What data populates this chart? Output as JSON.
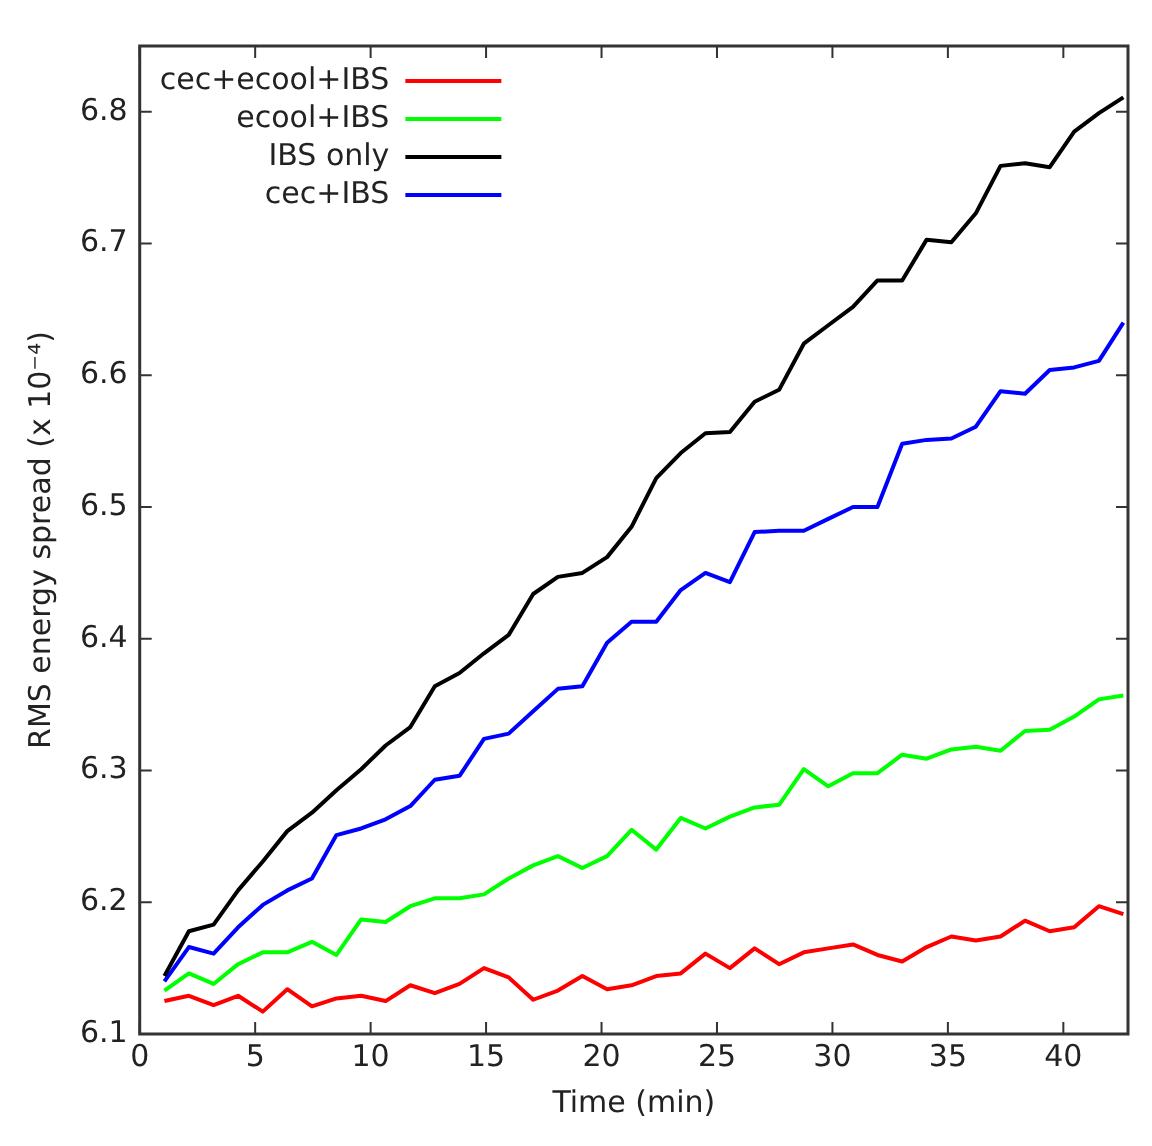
{
  "chart_data": {
    "type": "line",
    "xlabel": "Time (min)",
    "ylabel": "RMS energy spread (x 10⁻⁴)",
    "x": [
      1.07,
      2.13,
      3.2,
      4.26,
      5.33,
      6.39,
      7.46,
      8.52,
      9.59,
      10.65,
      11.72,
      12.78,
      13.85,
      14.91,
      15.98,
      17.04,
      18.11,
      19.17,
      20.24,
      21.3,
      22.37,
      23.43,
      24.5,
      25.56,
      26.63,
      27.69,
      28.76,
      29.82,
      30.89,
      31.95,
      33.02,
      34.08,
      35.15,
      36.21,
      37.28,
      38.34,
      39.41,
      40.47,
      41.54,
      42.6
    ],
    "series": [
      {
        "name": "cec+ecool+IBS",
        "color": "#ff0000",
        "values": [
          6.125,
          6.129,
          6.122,
          6.129,
          6.117,
          6.134,
          6.121,
          6.127,
          6.129,
          6.125,
          6.137,
          6.131,
          6.138,
          6.15,
          6.143,
          6.126,
          6.133,
          6.144,
          6.134,
          6.137,
          6.144,
          6.146,
          6.161,
          6.15,
          6.165,
          6.153,
          6.162,
          6.165,
          6.168,
          6.16,
          6.155,
          6.166,
          6.174,
          6.171,
          6.174,
          6.186,
          6.178,
          6.181,
          6.197,
          6.191
        ]
      },
      {
        "name": "ecool+IBS",
        "color": "#00ff00",
        "values": [
          6.133,
          6.146,
          6.138,
          6.153,
          6.162,
          6.162,
          6.17,
          6.16,
          6.187,
          6.185,
          6.197,
          6.203,
          6.203,
          6.206,
          6.218,
          6.228,
          6.235,
          6.226,
          6.235,
          6.255,
          6.24,
          6.264,
          6.256,
          6.265,
          6.272,
          6.274,
          6.301,
          6.288,
          6.298,
          6.298,
          6.312,
          6.309,
          6.316,
          6.318,
          6.315,
          6.33,
          6.331,
          6.341,
          6.354,
          6.357
        ]
      },
      {
        "name": "IBS only",
        "color": "#000000",
        "values": [
          6.144,
          6.178,
          6.183,
          6.209,
          6.231,
          6.254,
          6.268,
          6.285,
          6.301,
          6.319,
          6.333,
          6.364,
          6.374,
          6.389,
          6.403,
          6.434,
          6.447,
          6.45,
          6.462,
          6.485,
          6.522,
          6.541,
          6.556,
          6.557,
          6.58,
          6.589,
          6.624,
          6.638,
          6.652,
          6.672,
          6.672,
          6.703,
          6.701,
          6.723,
          6.759,
          6.761,
          6.758,
          6.785,
          6.799,
          6.811
        ]
      },
      {
        "name": "cec+IBS",
        "color": "#0000ff",
        "values": [
          6.14,
          6.166,
          6.161,
          6.181,
          6.198,
          6.209,
          6.218,
          6.251,
          6.256,
          6.263,
          6.273,
          6.293,
          6.296,
          6.324,
          6.328,
          6.345,
          6.362,
          6.364,
          6.397,
          6.413,
          6.413,
          6.437,
          6.45,
          6.443,
          6.481,
          6.482,
          6.482,
          6.491,
          6.5,
          6.5,
          6.548,
          6.551,
          6.552,
          6.561,
          6.588,
          6.586,
          6.604,
          6.606,
          6.611,
          6.64
        ]
      }
    ],
    "xlim": [
      0,
      42.8
    ],
    "xticks": [
      0,
      5,
      10,
      15,
      20,
      25,
      30,
      35,
      40
    ],
    "ylim": [
      6.1,
      6.85
    ],
    "yticks": [
      6.1,
      6.2,
      6.3,
      6.4,
      6.5,
      6.6,
      6.7,
      6.8
    ],
    "grid": false,
    "legend": "top left",
    "marker": "none",
    "line_style": "solid"
  }
}
